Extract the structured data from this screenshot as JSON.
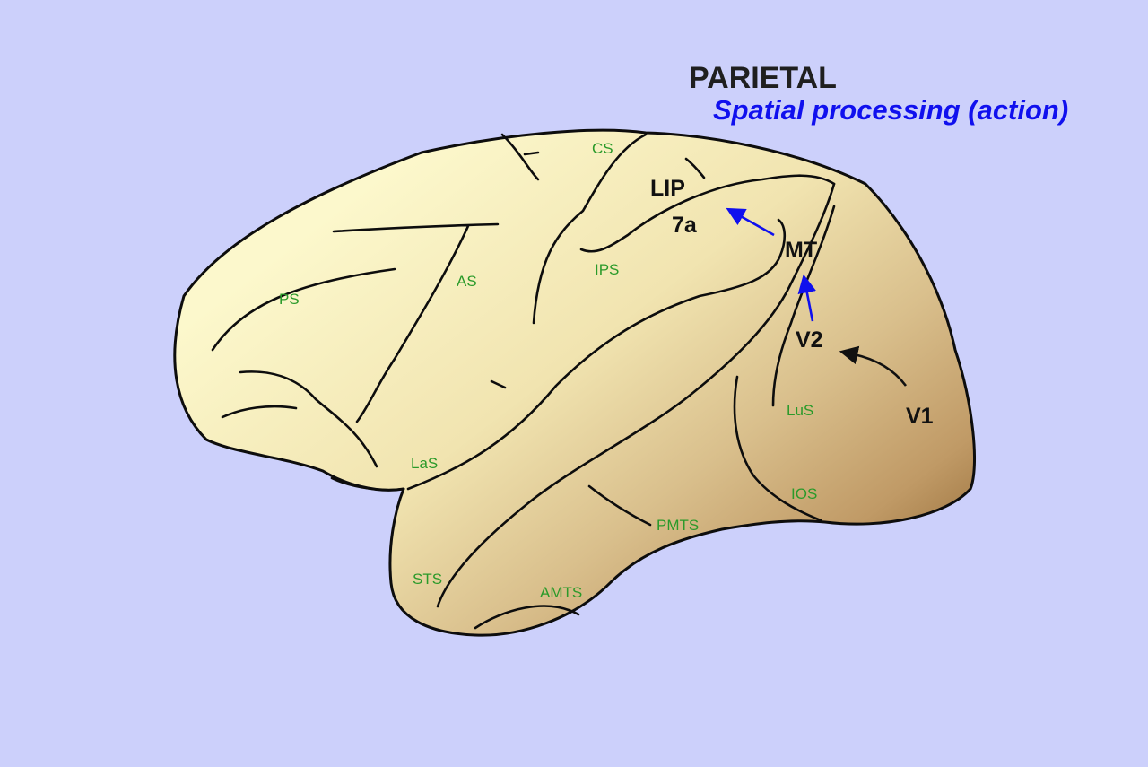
{
  "title": "PARIETAL",
  "subtitle": "Spatial processing (action)",
  "areas": {
    "lip": "LIP",
    "area7a": "7a",
    "mt": "MT",
    "v2": "V2",
    "v1": "V1"
  },
  "sulci": {
    "cs": "CS",
    "ips": "IPS",
    "as": "AS",
    "ps": "PS",
    "las": "LaS",
    "lus": "LuS",
    "ios": "IOS",
    "pmts": "PMTS",
    "sts": "STS",
    "amts": "AMTS"
  },
  "colors": {
    "background": "#ccd0fb",
    "brain_light": "#fbf6c8",
    "brain_dark": "#8e6430",
    "sulcus_label": "#2a9a2a",
    "pathway_dorsal": "#1010ee",
    "pathway_v1_v2": "#111111",
    "subtitle": "#1010ee"
  },
  "pathway": [
    "V1",
    "V2",
    "MT",
    "7a"
  ]
}
